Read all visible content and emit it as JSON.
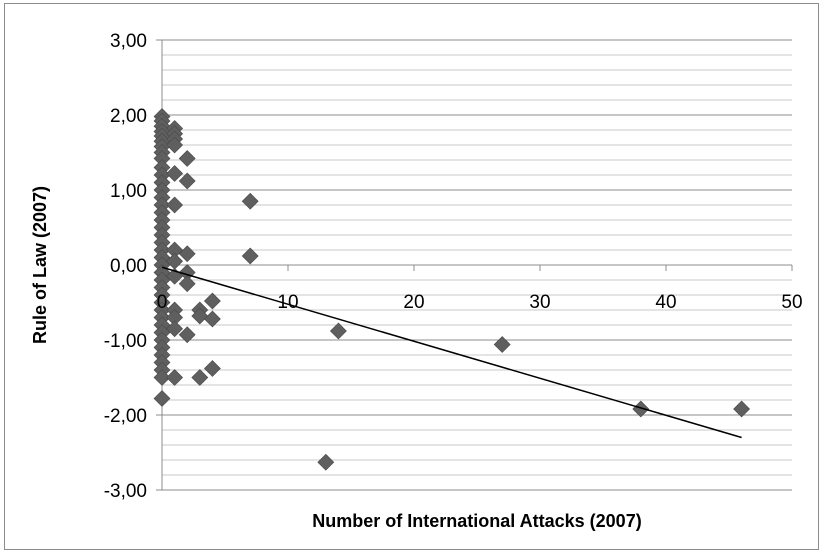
{
  "chart_data": {
    "type": "scatter",
    "xlabel": "Number of International Attacks (2007)",
    "ylabel": "Rule of Law (2007)",
    "xlim": [
      0,
      50
    ],
    "ylim": [
      -3,
      3
    ],
    "x_ticks": [
      "0",
      "10",
      "20",
      "30",
      "40",
      "50"
    ],
    "y_ticks": [
      "3,00",
      "2,00",
      "1,00",
      "0,00",
      "-1,00",
      "-2,00",
      "-3,00"
    ],
    "grid": "horizontal major and minor",
    "legend": "none",
    "marker": "diamond",
    "marker_color": "#5f5f5f",
    "trendline": {
      "type": "linear",
      "x": [
        0,
        46
      ],
      "y": [
        -0.03,
        -2.3
      ]
    },
    "points": [
      {
        "x": 0,
        "y": 1.98
      },
      {
        "x": 0,
        "y": 1.92
      },
      {
        "x": 0,
        "y": 1.85
      },
      {
        "x": 0,
        "y": 1.78
      },
      {
        "x": 0,
        "y": 1.72
      },
      {
        "x": 0,
        "y": 1.65
      },
      {
        "x": 0,
        "y": 1.58
      },
      {
        "x": 0,
        "y": 1.5
      },
      {
        "x": 0,
        "y": 1.42
      },
      {
        "x": 0,
        "y": 1.3
      },
      {
        "x": 0,
        "y": 1.2
      },
      {
        "x": 0,
        "y": 1.1
      },
      {
        "x": 0,
        "y": 1.0
      },
      {
        "x": 0,
        "y": 0.9
      },
      {
        "x": 0,
        "y": 0.8
      },
      {
        "x": 0,
        "y": 0.7
      },
      {
        "x": 0,
        "y": 0.6
      },
      {
        "x": 0,
        "y": 0.5
      },
      {
        "x": 0,
        "y": 0.4
      },
      {
        "x": 0,
        "y": 0.3
      },
      {
        "x": 0,
        "y": 0.2
      },
      {
        "x": 0,
        "y": 0.1
      },
      {
        "x": 0,
        "y": 0.0
      },
      {
        "x": 0,
        "y": -0.1
      },
      {
        "x": 0,
        "y": -0.2
      },
      {
        "x": 0,
        "y": -0.3
      },
      {
        "x": 0,
        "y": -0.4
      },
      {
        "x": 0,
        "y": -0.5
      },
      {
        "x": 0,
        "y": -0.6
      },
      {
        "x": 0,
        "y": -0.7
      },
      {
        "x": 0,
        "y": -0.8
      },
      {
        "x": 0,
        "y": -0.9
      },
      {
        "x": 0,
        "y": -1.0
      },
      {
        "x": 0,
        "y": -1.1
      },
      {
        "x": 0,
        "y": -1.2
      },
      {
        "x": 0,
        "y": -1.3
      },
      {
        "x": 0,
        "y": -1.4
      },
      {
        "x": 0,
        "y": -1.5
      },
      {
        "x": 0,
        "y": -1.78
      },
      {
        "x": 1,
        "y": 1.82
      },
      {
        "x": 1,
        "y": 1.75
      },
      {
        "x": 1,
        "y": 1.68
      },
      {
        "x": 1,
        "y": 1.6
      },
      {
        "x": 1,
        "y": 1.22
      },
      {
        "x": 1,
        "y": 0.8
      },
      {
        "x": 1,
        "y": 0.2
      },
      {
        "x": 1,
        "y": 0.05
      },
      {
        "x": 1,
        "y": -0.15
      },
      {
        "x": 1,
        "y": -0.6
      },
      {
        "x": 1,
        "y": -0.7
      },
      {
        "x": 1,
        "y": -0.85
      },
      {
        "x": 1,
        "y": -1.5
      },
      {
        "x": 2,
        "y": 1.42
      },
      {
        "x": 2,
        "y": 1.12
      },
      {
        "x": 2,
        "y": 0.15
      },
      {
        "x": 2,
        "y": -0.1
      },
      {
        "x": 2,
        "y": -0.25
      },
      {
        "x": 2,
        "y": -0.93
      },
      {
        "x": 3,
        "y": -0.6
      },
      {
        "x": 3,
        "y": -0.68
      },
      {
        "x": 3,
        "y": -1.5
      },
      {
        "x": 4,
        "y": -0.48
      },
      {
        "x": 4,
        "y": -0.72
      },
      {
        "x": 4,
        "y": -1.38
      },
      {
        "x": 7,
        "y": 0.85
      },
      {
        "x": 7,
        "y": 0.12
      },
      {
        "x": 13,
        "y": -2.63
      },
      {
        "x": 14,
        "y": -0.88
      },
      {
        "x": 27,
        "y": -1.06
      },
      {
        "x": 38,
        "y": -1.92
      },
      {
        "x": 46,
        "y": -1.92
      }
    ]
  }
}
